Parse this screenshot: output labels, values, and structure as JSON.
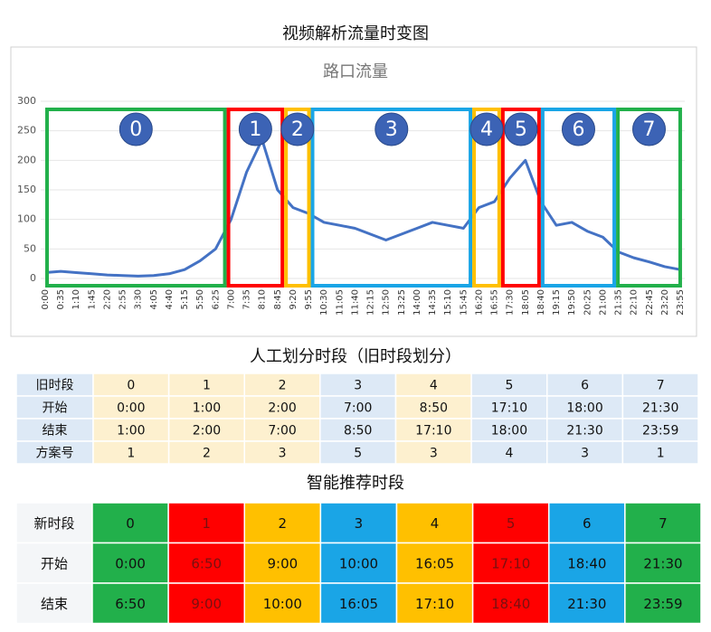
{
  "header": {
    "title": "视频解析流量时变图"
  },
  "chart_data": {
    "type": "line",
    "title": "路口流量",
    "categories": [
      "0:00",
      "0:35",
      "1:10",
      "1:45",
      "2:20",
      "2:55",
      "3:30",
      "4:05",
      "4:40",
      "5:15",
      "5:50",
      "6:25",
      "7:00",
      "7:35",
      "8:10",
      "8:45",
      "9:20",
      "9:55",
      "10:30",
      "11:05",
      "11:40",
      "12:15",
      "12:50",
      "13:25",
      "14:00",
      "14:35",
      "15:10",
      "15:45",
      "16:20",
      "16:55",
      "17:30",
      "18:05",
      "18:40",
      "19:15",
      "19:50",
      "20:25",
      "21:00",
      "21:35",
      "22:10",
      "22:45",
      "23:20",
      "23:55"
    ],
    "values": [
      10,
      12,
      10,
      8,
      6,
      5,
      4,
      5,
      8,
      15,
      30,
      50,
      100,
      180,
      235,
      150,
      120,
      110,
      95,
      90,
      85,
      75,
      65,
      75,
      85,
      95,
      90,
      85,
      120,
      130,
      170,
      200,
      130,
      90,
      95,
      80,
      70,
      45,
      35,
      28,
      20,
      15
    ],
    "color": "#4472c4",
    "ylim": [
      0,
      300
    ],
    "yticks": [
      0,
      50,
      100,
      150,
      200,
      250,
      300
    ],
    "grid": true
  },
  "table1": {
    "title": "人工划分时段（旧时段划分）",
    "column_colors": [
      "#dde9f6",
      "#fdf0cf",
      "#fdf0cf",
      "#fdf0cf",
      "#dde9f6",
      "#fdf0cf",
      "#dde9f6",
      "#dde9f6",
      "#dde9f6"
    ],
    "rows": [
      [
        "旧时段",
        "0",
        "1",
        "2",
        "3",
        "4",
        "5",
        "6",
        "7"
      ],
      [
        "开始",
        "0:00",
        "1:00",
        "2:00",
        "7:00",
        "8:50",
        "17:10",
        "18:00",
        "21:30"
      ],
      [
        "结束",
        "1:00",
        "2:00",
        "7:00",
        "8:50",
        "17:10",
        "18:00",
        "21:30",
        "23:59"
      ],
      [
        "方案号",
        "1",
        "2",
        "3",
        "5",
        "3",
        "4",
        "3",
        "1"
      ]
    ]
  },
  "table2": {
    "title": "智能推荐时段",
    "column_colors": [
      "#f4f6f8",
      "#22b04b",
      "#ff0000",
      "#ffc000",
      "#1aa5e6",
      "#ffc000",
      "#ff0000",
      "#1aa5e6",
      "#22b04b"
    ],
    "rows": [
      [
        "新时段",
        "0",
        "1",
        "2",
        "3",
        "4",
        "5",
        "6",
        "7"
      ],
      [
        "开始",
        "0:00",
        "6:50",
        "9:00",
        "10:00",
        "16:05",
        "17:10",
        "18:40",
        "21:30"
      ],
      [
        "结束",
        "6:50",
        "9:00",
        "10:00",
        "16:05",
        "17:10",
        "18:40",
        "21:30",
        "23:59"
      ]
    ]
  }
}
